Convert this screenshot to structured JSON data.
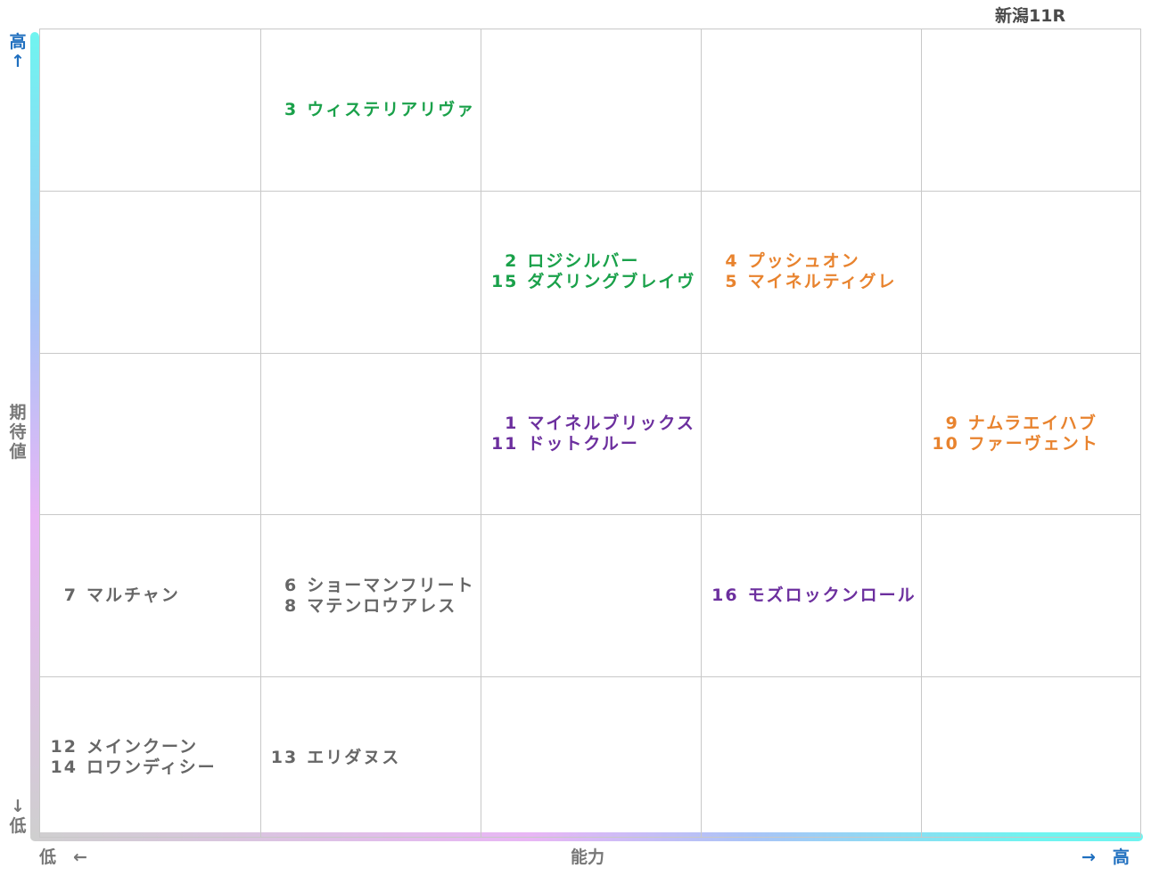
{
  "title": "新潟11R",
  "axes": {
    "y_label": "期待値",
    "y_high": "高↑",
    "y_low": "↓低",
    "x_label": "能力",
    "x_low": "低　←",
    "x_high": "→　高"
  },
  "colors": {
    "group_green": "#1aa14a",
    "group_orange": "#e8832e",
    "group_purple": "#6c2f9e",
    "group_gray": "#666666",
    "axis_text_blue": "#1f6fbf",
    "axis_text_gray": "#777777",
    "gridline": "#c8c8c8"
  },
  "chart_data": {
    "type": "table",
    "x_axis": "能力",
    "y_axis": "期待値",
    "columns": 5,
    "rows": 5,
    "cells": [
      {
        "row": 0,
        "col": 1,
        "color": "green",
        "entries": [
          {
            "num": "3",
            "name": "ウィステリアリヴァ"
          }
        ]
      },
      {
        "row": 1,
        "col": 2,
        "color": "green",
        "entries": [
          {
            "num": "2",
            "name": "ロジシルバー"
          },
          {
            "num": "15",
            "name": "ダズリングブレイヴ"
          }
        ]
      },
      {
        "row": 1,
        "col": 3,
        "color": "orange",
        "entries": [
          {
            "num": "4",
            "name": "プッシュオン"
          },
          {
            "num": "5",
            "name": "マイネルティグレ"
          }
        ]
      },
      {
        "row": 2,
        "col": 2,
        "color": "purple",
        "entries": [
          {
            "num": "1",
            "name": "マイネルブリックス"
          },
          {
            "num": "11",
            "name": "ドットクルー"
          }
        ]
      },
      {
        "row": 2,
        "col": 4,
        "color": "orange",
        "entries": [
          {
            "num": "9",
            "name": "ナムラエイハブ"
          },
          {
            "num": "10",
            "name": "ファーヴェント"
          }
        ]
      },
      {
        "row": 3,
        "col": 0,
        "color": "gray",
        "entries": [
          {
            "num": "7",
            "name": "マルチャン"
          }
        ]
      },
      {
        "row": 3,
        "col": 1,
        "color": "gray",
        "entries": [
          {
            "num": "6",
            "name": "ショーマンフリート"
          },
          {
            "num": "8",
            "name": "マテンロウアレス"
          }
        ]
      },
      {
        "row": 3,
        "col": 3,
        "color": "purple",
        "entries": [
          {
            "num": "16",
            "name": "モズロックンロール"
          }
        ]
      },
      {
        "row": 4,
        "col": 0,
        "color": "gray",
        "entries": [
          {
            "num": "12",
            "name": "メインクーン"
          },
          {
            "num": "14",
            "name": "ロワンディシー"
          }
        ]
      },
      {
        "row": 4,
        "col": 1,
        "color": "gray",
        "entries": [
          {
            "num": "13",
            "name": "エリダヌス"
          }
        ]
      }
    ]
  }
}
